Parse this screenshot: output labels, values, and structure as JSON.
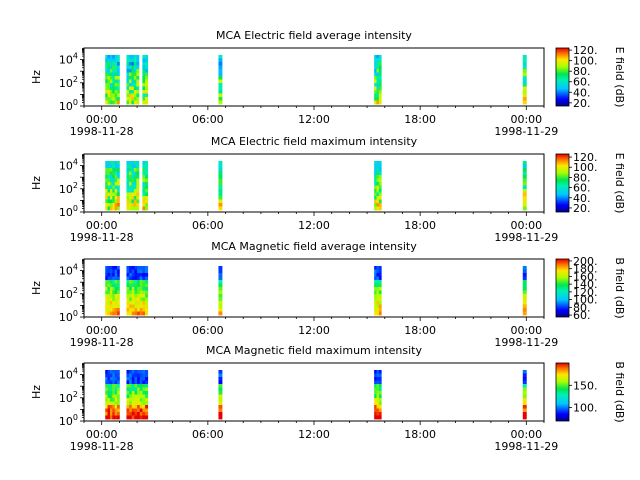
{
  "chart_data": [
    {
      "type": "heatmap",
      "title": "MCA  Electric field average intensity",
      "ylabel": "Hz",
      "yscale": "log",
      "ylim": [
        1,
        100000
      ],
      "y_ticks": [
        {
          "base": "10",
          "exp": "0",
          "value": 1
        },
        {
          "base": "10",
          "exp": "2",
          "value": 100
        },
        {
          "base": "10",
          "exp": "4",
          "value": 10000
        }
      ],
      "x_tick_labels": [
        "00:00",
        "06:00",
        "12:00",
        "18:00",
        "00:00"
      ],
      "x_date_labels": [
        "1998-11-28",
        "1998-11-29"
      ],
      "xlim_hours": [
        -1,
        25
      ],
      "colorbar": {
        "label": "E field (dB)",
        "range": [
          14,
          124
        ],
        "ticks": [
          "20.",
          "40.",
          "60.",
          "80.",
          "100.",
          "120."
        ]
      },
      "data_intervals_hours": [
        [
          0.2,
          1.0
        ],
        [
          1.4,
          2.1
        ],
        [
          2.3,
          2.6
        ],
        [
          6.6,
          6.8
        ],
        [
          15.4,
          15.8
        ],
        [
          23.8,
          24.0
        ]
      ]
    },
    {
      "type": "heatmap",
      "title": "MCA  Electric field maximum intensity",
      "ylabel": "Hz",
      "yscale": "log",
      "ylim": [
        1,
        100000
      ],
      "y_ticks": [
        {
          "base": "10",
          "exp": "0",
          "value": 1
        },
        {
          "base": "10",
          "exp": "2",
          "value": 100
        },
        {
          "base": "10",
          "exp": "4",
          "value": 10000
        }
      ],
      "x_tick_labels": [
        "00:00",
        "06:00",
        "12:00",
        "18:00",
        "00:00"
      ],
      "x_date_labels": [
        "1998-11-28",
        "1998-11-29"
      ],
      "xlim_hours": [
        -1,
        25
      ],
      "colorbar": {
        "label": "E field (dB)",
        "range": [
          12,
          126
        ],
        "ticks": [
          "20.",
          "40.",
          "60.",
          "80.",
          "100.",
          "120."
        ]
      },
      "data_intervals_hours": [
        [
          0.2,
          1.0
        ],
        [
          1.4,
          2.1
        ],
        [
          2.3,
          2.6
        ],
        [
          6.6,
          6.8
        ],
        [
          15.4,
          15.8
        ],
        [
          23.8,
          24.0
        ]
      ]
    },
    {
      "type": "heatmap",
      "title": "MCA  Magnetic field average intensity",
      "ylabel": "Hz",
      "yscale": "log",
      "ylim": [
        1,
        100000
      ],
      "y_ticks": [
        {
          "base": "10",
          "exp": "0",
          "value": 1
        },
        {
          "base": "10",
          "exp": "2",
          "value": 100
        },
        {
          "base": "10",
          "exp": "4",
          "value": 10000
        }
      ],
      "x_tick_labels": [
        "00:00",
        "06:00",
        "12:00",
        "18:00",
        "00:00"
      ],
      "x_date_labels": [
        "1998-11-28",
        "1998-11-29"
      ],
      "xlim_hours": [
        -1,
        25
      ],
      "colorbar": {
        "label": "B field (dB)",
        "range": [
          55,
          205
        ],
        "ticks": [
          "60.",
          "80.",
          "100.",
          "120.",
          "140.",
          "160.",
          "180.",
          "200."
        ]
      },
      "data_intervals_hours": [
        [
          0.2,
          1.0
        ],
        [
          1.4,
          2.6
        ],
        [
          6.6,
          6.8
        ],
        [
          15.4,
          15.8
        ],
        [
          23.8,
          24.0
        ]
      ]
    },
    {
      "type": "heatmap",
      "title": "MCA  Magnetic field maximum intensity",
      "ylabel": "Hz",
      "yscale": "log",
      "ylim": [
        1,
        100000
      ],
      "y_ticks": [
        {
          "base": "10",
          "exp": "0",
          "value": 1
        },
        {
          "base": "10",
          "exp": "2",
          "value": 100
        },
        {
          "base": "10",
          "exp": "4",
          "value": 10000
        }
      ],
      "x_tick_labels": [
        "00:00",
        "06:00",
        "12:00",
        "18:00",
        "00:00"
      ],
      "x_date_labels": [
        "1998-11-28",
        "1998-11-29"
      ],
      "xlim_hours": [
        -1,
        25
      ],
      "colorbar": {
        "label": "B field (dB)",
        "range": [
          70,
          200
        ],
        "ticks": [
          "100.",
          "150."
        ]
      },
      "data_intervals_hours": [
        [
          0.2,
          1.0
        ],
        [
          1.4,
          2.6
        ],
        [
          6.6,
          6.8
        ],
        [
          15.4,
          15.8
        ],
        [
          23.8,
          24.0
        ]
      ]
    }
  ]
}
